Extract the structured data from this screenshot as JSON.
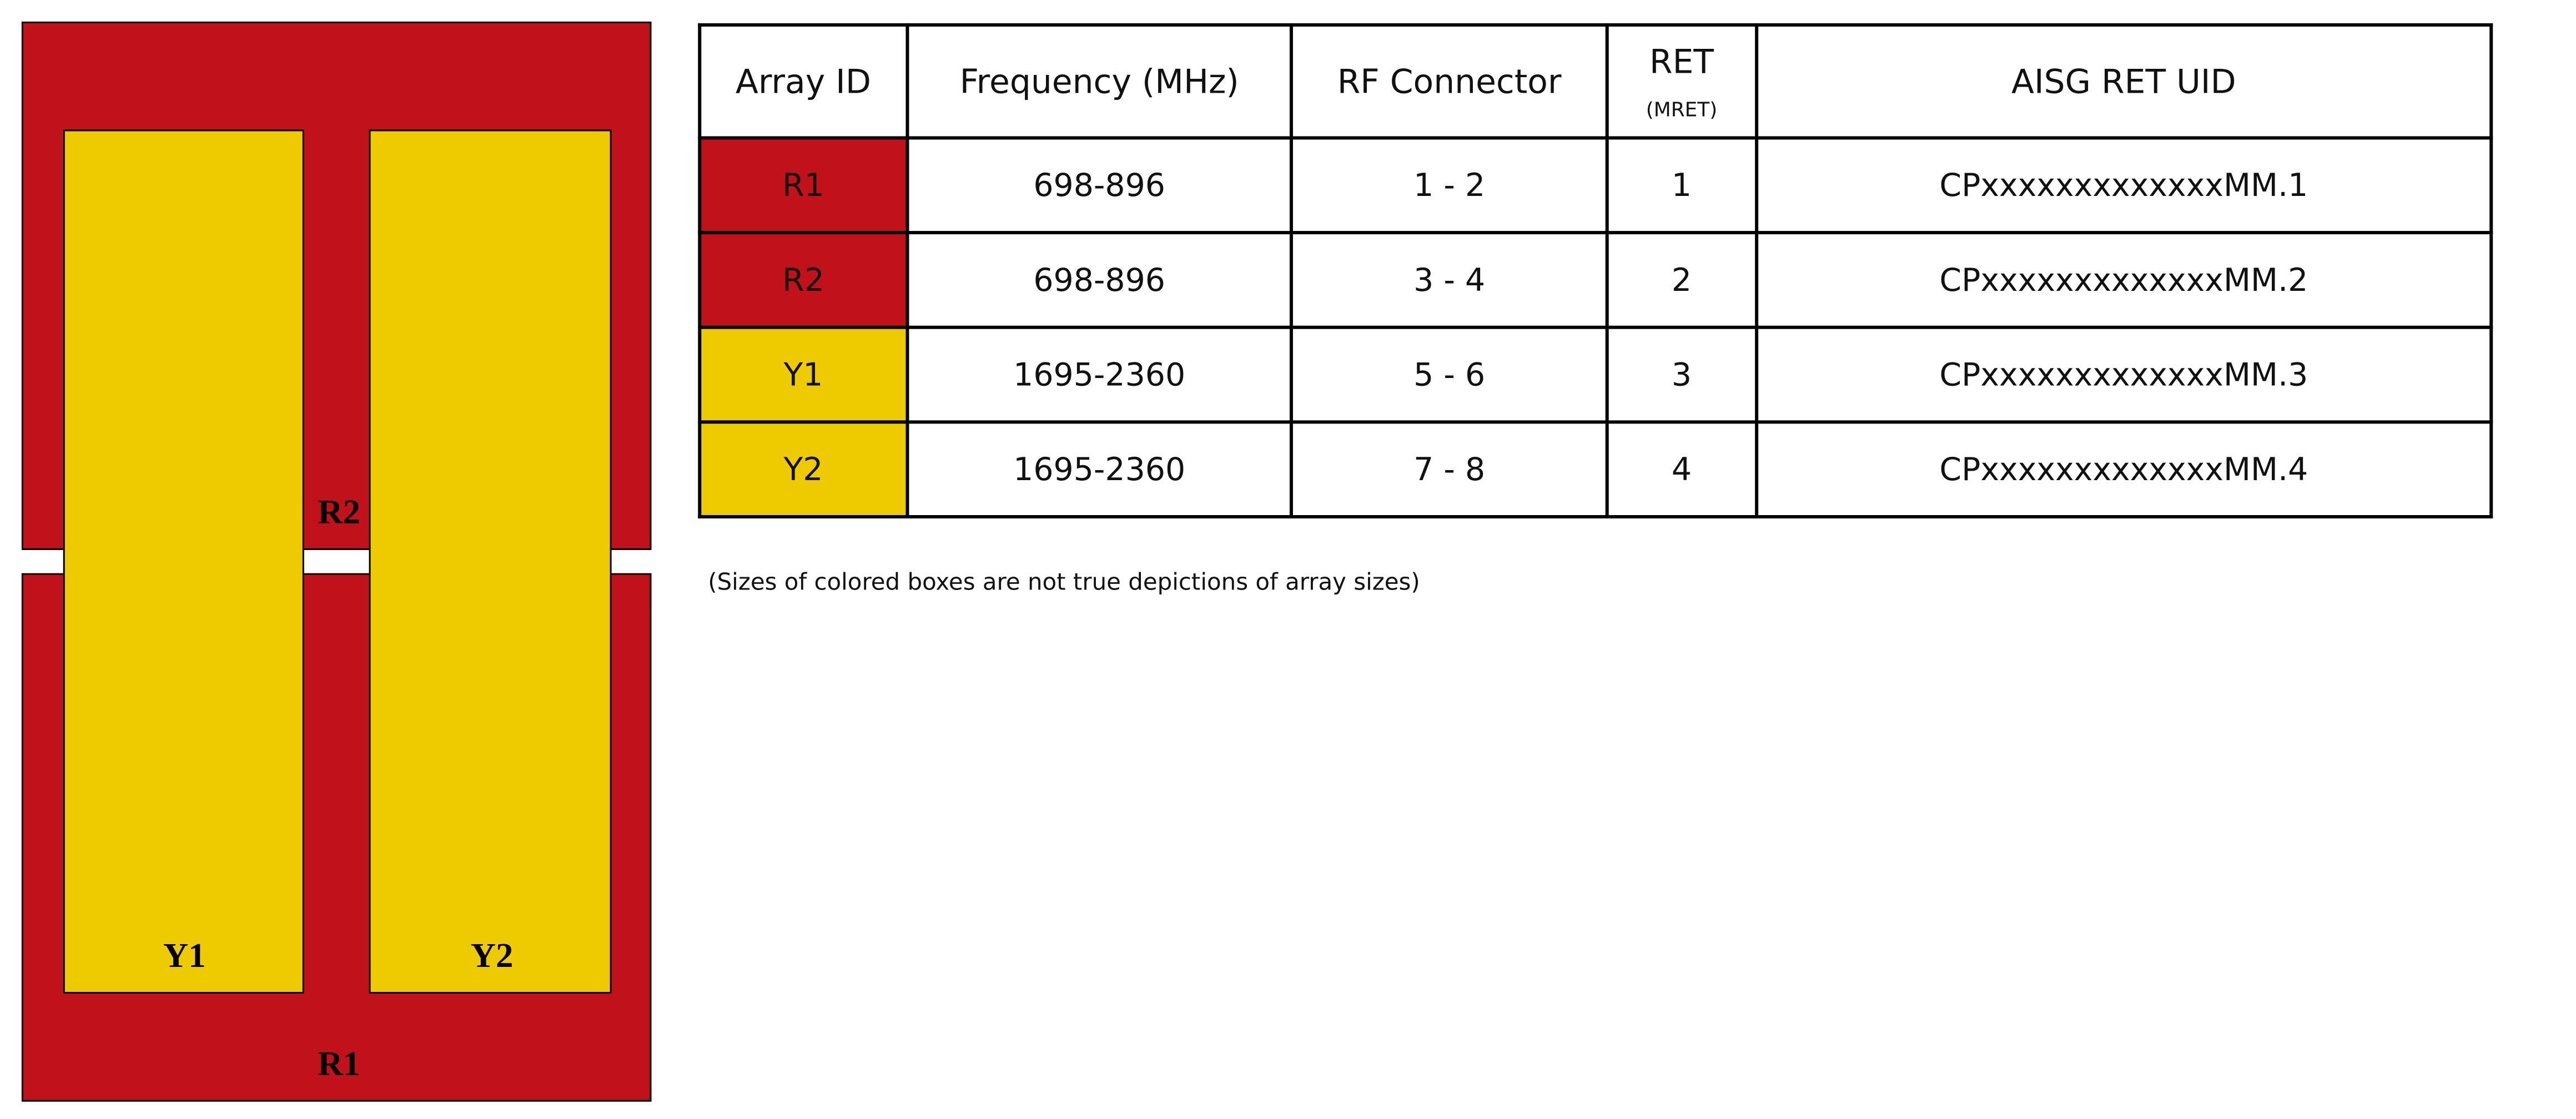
{
  "colors": {
    "red": "#c1121c",
    "yellow": "#eecb00"
  },
  "diagram": {
    "labels": {
      "r1": "R1",
      "r2": "R2",
      "y1": "Y1",
      "y2": "Y2"
    }
  },
  "table": {
    "headers": {
      "array_id": "Array ID",
      "frequency": "Frequency (MHz)",
      "rf_connector": "RF Connector",
      "ret": "RET",
      "ret_sub": "(MRET)",
      "uid": "AISG RET UID"
    },
    "rows": [
      {
        "id": "R1",
        "freq": "698-896",
        "rf": "1 - 2",
        "ret": "1",
        "uid": "CPxxxxxxxxxxxxxMM.1",
        "color": "red"
      },
      {
        "id": "R2",
        "freq": "698-896",
        "rf": "3 - 4",
        "ret": "2",
        "uid": "CPxxxxxxxxxxxxxMM.2",
        "color": "red"
      },
      {
        "id": "Y1",
        "freq": "1695-2360",
        "rf": "5 - 6",
        "ret": "3",
        "uid": "CPxxxxxxxxxxxxxMM.3",
        "color": "yellow"
      },
      {
        "id": "Y2",
        "freq": "1695-2360",
        "rf": "7 - 8",
        "ret": "4",
        "uid": "CPxxxxxxxxxxxxxMM.4",
        "color": "yellow"
      }
    ]
  },
  "note": "(Sizes of colored boxes are not true depictions of array sizes)"
}
